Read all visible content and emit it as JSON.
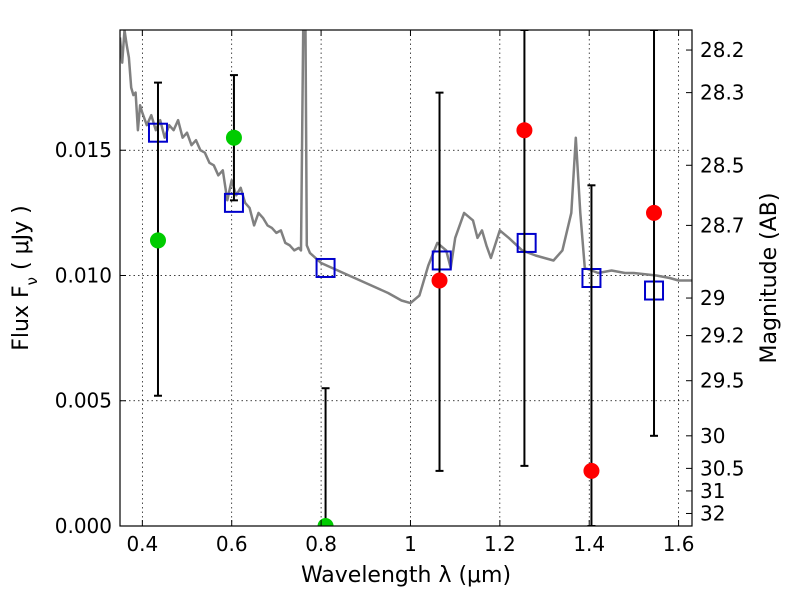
{
  "chart_data": {
    "type": "scatter",
    "xlabel": "Wavelength  λ (μm)",
    "ylabel": "Flux  F_ν  ( μJy )",
    "y2label": "Magnitude (AB)",
    "xlim": [
      0.35,
      1.63
    ],
    "ylim": [
      0.0,
      0.0198
    ],
    "grid": true,
    "x_ticks": [
      0.4,
      0.6,
      0.8,
      1.0,
      1.2,
      1.4,
      1.6
    ],
    "x_tick_labels": [
      "0.4",
      "0.6",
      "0.8",
      "1",
      "1.2",
      "1.4",
      "1.6"
    ],
    "y_ticks": [
      0.0,
      0.005,
      0.01,
      0.015
    ],
    "y_tick_labels": [
      "0.000",
      "0.005",
      "0.010",
      "0.015"
    ],
    "y2_ticks": [
      {
        "flux": 0.019,
        "label": "28.2"
      },
      {
        "flux": 0.0173,
        "label": "28.3"
      },
      {
        "flux": 0.0144,
        "label": "28.5"
      },
      {
        "flux": 0.012,
        "label": "28.7"
      },
      {
        "flux": 0.0091,
        "label": "29"
      },
      {
        "flux": 0.0076,
        "label": "29.2"
      },
      {
        "flux": 0.0058,
        "label": "29.5"
      },
      {
        "flux": 0.0036,
        "label": "30"
      },
      {
        "flux": 0.0023,
        "label": "30.5"
      },
      {
        "flux": 0.0014,
        "label": "31"
      },
      {
        "flux": 0.0005,
        "label": "32"
      }
    ],
    "series": [
      {
        "kind": "line",
        "color": "#808080",
        "points": [
          [
            0.35,
            0.0195
          ],
          [
            0.355,
            0.0185
          ],
          [
            0.36,
            0.0198
          ],
          [
            0.365,
            0.0192
          ],
          [
            0.37,
            0.0187
          ],
          [
            0.375,
            0.0175
          ],
          [
            0.38,
            0.0172
          ],
          [
            0.385,
            0.0173
          ],
          [
            0.39,
            0.0158
          ],
          [
            0.395,
            0.0168
          ],
          [
            0.4,
            0.0165
          ],
          [
            0.41,
            0.016
          ],
          [
            0.42,
            0.0164
          ],
          [
            0.43,
            0.0158
          ],
          [
            0.44,
            0.0162
          ],
          [
            0.45,
            0.0155
          ],
          [
            0.46,
            0.016
          ],
          [
            0.47,
            0.0158
          ],
          [
            0.48,
            0.0162
          ],
          [
            0.49,
            0.0155
          ],
          [
            0.5,
            0.0157
          ],
          [
            0.51,
            0.0152
          ],
          [
            0.52,
            0.0154
          ],
          [
            0.53,
            0.015
          ],
          [
            0.54,
            0.0149
          ],
          [
            0.55,
            0.0145
          ],
          [
            0.56,
            0.0144
          ],
          [
            0.57,
            0.014
          ],
          [
            0.58,
            0.0142
          ],
          [
            0.59,
            0.013
          ],
          [
            0.6,
            0.0138
          ],
          [
            0.61,
            0.0132
          ],
          [
            0.62,
            0.0135
          ],
          [
            0.63,
            0.0129
          ],
          [
            0.64,
            0.0127
          ],
          [
            0.65,
            0.012
          ],
          [
            0.66,
            0.0125
          ],
          [
            0.67,
            0.0123
          ],
          [
            0.68,
            0.012
          ],
          [
            0.69,
            0.0119
          ],
          [
            0.7,
            0.0117
          ],
          [
            0.71,
            0.0118
          ],
          [
            0.72,
            0.0113
          ],
          [
            0.73,
            0.0112
          ],
          [
            0.74,
            0.011
          ],
          [
            0.75,
            0.0111
          ],
          [
            0.755,
            0.011
          ],
          [
            0.76,
            0.0198
          ],
          [
            0.765,
            0.0198
          ],
          [
            0.768,
            0.0112
          ],
          [
            0.775,
            0.0109
          ],
          [
            0.8,
            0.0105
          ],
          [
            0.85,
            0.0101
          ],
          [
            0.9,
            0.0097
          ],
          [
            0.95,
            0.0093
          ],
          [
            0.98,
            0.009
          ],
          [
            1.0,
            0.0089
          ],
          [
            1.02,
            0.0092
          ],
          [
            1.04,
            0.0104
          ],
          [
            1.06,
            0.0113
          ],
          [
            1.08,
            0.011
          ],
          [
            1.09,
            0.0103
          ],
          [
            1.1,
            0.0115
          ],
          [
            1.12,
            0.0125
          ],
          [
            1.14,
            0.0122
          ],
          [
            1.15,
            0.0115
          ],
          [
            1.16,
            0.0118
          ],
          [
            1.17,
            0.0112
          ],
          [
            1.18,
            0.0107
          ],
          [
            1.2,
            0.0118
          ],
          [
            1.22,
            0.0115
          ],
          [
            1.25,
            0.011
          ],
          [
            1.28,
            0.0108
          ],
          [
            1.3,
            0.0107
          ],
          [
            1.32,
            0.0106
          ],
          [
            1.34,
            0.011
          ],
          [
            1.36,
            0.0125
          ],
          [
            1.37,
            0.0155
          ],
          [
            1.38,
            0.0125
          ],
          [
            1.39,
            0.0103
          ],
          [
            1.42,
            0.0101
          ],
          [
            1.45,
            0.0102
          ],
          [
            1.48,
            0.0101
          ],
          [
            1.5,
            0.0101
          ],
          [
            1.55,
            0.01
          ],
          [
            1.58,
            0.0099
          ],
          [
            1.6,
            0.0098
          ],
          [
            1.63,
            0.0098
          ]
        ]
      },
      {
        "kind": "markers",
        "marker": "open-square",
        "color": "#0000cc",
        "points": [
          {
            "x": 0.435,
            "y": 0.0157
          },
          {
            "x": 0.605,
            "y": 0.0129
          },
          {
            "x": 0.81,
            "y": 0.0103
          },
          {
            "x": 1.07,
            "y": 0.0106
          },
          {
            "x": 1.26,
            "y": 0.0113
          },
          {
            "x": 1.405,
            "y": 0.0099
          },
          {
            "x": 1.545,
            "y": 0.0094
          }
        ]
      },
      {
        "kind": "markers",
        "marker": "filled-circle",
        "color": "#00cc00",
        "points": [
          {
            "x": 0.435,
            "y": 0.0114,
            "err_lo": 0.0052,
            "err_hi": 0.0177
          },
          {
            "x": 0.605,
            "y": 0.0155,
            "err_lo": 0.013,
            "err_hi": 0.018
          },
          {
            "x": 0.81,
            "y": 0.0,
            "err_lo": 0.0,
            "err_hi": 0.0055
          }
        ]
      },
      {
        "kind": "markers",
        "marker": "filled-circle",
        "color": "#ff0000",
        "points": [
          {
            "x": 1.065,
            "y": 0.0098,
            "err_lo": 0.0022,
            "err_hi": 0.0173
          },
          {
            "x": 1.255,
            "y": 0.0158,
            "err_lo": 0.0024,
            "err_hi": 0.0198
          },
          {
            "x": 1.405,
            "y": 0.0022,
            "err_lo": 0.0,
            "err_hi": 0.0136
          },
          {
            "x": 1.545,
            "y": 0.0125,
            "err_lo": 0.0036,
            "err_hi": 0.0198
          }
        ]
      }
    ]
  }
}
